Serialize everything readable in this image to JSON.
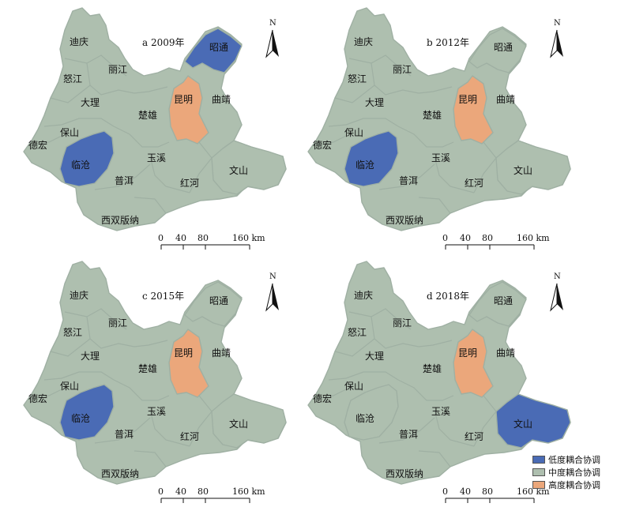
{
  "colors": {
    "low": "#4a6bb5",
    "mid": "#aebfaf",
    "high": "#eba77b",
    "border": "#9fb0a3"
  },
  "legend": [
    {
      "key": "low",
      "label": "低度耦合协调"
    },
    {
      "key": "mid",
      "label": "中度耦合协调"
    },
    {
      "key": "high",
      "label": "高度耦合协调"
    }
  ],
  "scale": {
    "ticks": [
      "0",
      "40",
      "80",
      "160 km"
    ]
  },
  "north_label": "N",
  "cities": {
    "diqing": "迪庆",
    "nujiang": "怒江",
    "lijiang": "丽江",
    "dali": "大理",
    "baoshan": "保山",
    "dehong": "德宏",
    "lincang": "临沧",
    "puer": "普洱",
    "xishuangbanna": "西双版纳",
    "chuxiong": "楚雄",
    "yuxi": "玉溪",
    "honghe": "红河",
    "wenshan": "文山",
    "kunming": "昆明",
    "qujing": "曲靖",
    "zhaotong": "昭通"
  },
  "panels": [
    {
      "title": "a 2009年",
      "classes": {
        "zhaotong": "low",
        "lincang": "low",
        "kunming": "high"
      }
    },
    {
      "title": "b 2012年",
      "classes": {
        "lincang": "low",
        "kunming": "high"
      }
    },
    {
      "title": "c 2015年",
      "classes": {
        "lincang": "low",
        "kunming": "high"
      }
    },
    {
      "title": "d 2018年",
      "classes": {
        "wenshan": "low",
        "kunming": "high"
      }
    }
  ]
}
